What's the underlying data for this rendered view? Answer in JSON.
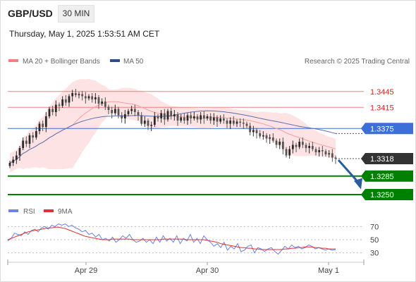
{
  "header": {
    "symbol": "GBP/USD",
    "timeframe": "30 MIN",
    "timestamp": "Thursday, May 1, 2025 1:53:51 AM CET"
  },
  "legend": {
    "bollinger": "MA 20 + Bollinger Bands",
    "ma50": "MA 50",
    "credit": "Research © 2025 Trading Central",
    "rsi": "RSI",
    "rsi_ma": "9MA"
  },
  "colors": {
    "resistance": "#f08080",
    "support": "#008000",
    "ma20": "#f4a0a0",
    "bands_fill": "#fde3e3",
    "ma50": "#5a6fb0",
    "candle_up": "#2a2a2a",
    "candle_down": "#555555",
    "current_badge": "#333333",
    "support_badge": "#008000",
    "ma50_badge": "#3d6fd8",
    "rsi": "#6b84e0",
    "rsi_ma": "#e53030",
    "forecast_arrow": "#2a5c9e"
  },
  "chart_data": [
    {
      "type": "candlestick",
      "title": "GBP/USD 30 MIN",
      "x_ticks": [
        "Apr 29",
        "Apr 30",
        "May 1"
      ],
      "ylim": [
        1.321,
        1.349
      ],
      "closes": [
        1.331,
        1.3316,
        1.3324,
        1.3338,
        1.3352,
        1.3346,
        1.3362,
        1.3358,
        1.337,
        1.3384,
        1.3378,
        1.3398,
        1.3412,
        1.3406,
        1.342,
        1.3418,
        1.343,
        1.3424,
        1.3436,
        1.3442,
        1.3438,
        1.344,
        1.3436,
        1.3432,
        1.3436,
        1.343,
        1.3434,
        1.3422,
        1.3426,
        1.3416,
        1.341,
        1.3404,
        1.3412,
        1.34,
        1.3394,
        1.3402,
        1.3408,
        1.3412,
        1.3406,
        1.34,
        1.3384,
        1.339,
        1.338,
        1.3382,
        1.3398,
        1.3394,
        1.3404,
        1.3392,
        1.3408,
        1.3398,
        1.3402,
        1.339,
        1.3396,
        1.339,
        1.34,
        1.3394,
        1.3398,
        1.3392,
        1.34,
        1.3394,
        1.3398,
        1.339,
        1.3396,
        1.3388,
        1.3394,
        1.339,
        1.3384,
        1.339,
        1.3384,
        1.3388,
        1.3386,
        1.3384,
        1.338,
        1.3368,
        1.3372,
        1.3366,
        1.336,
        1.3362,
        1.3356,
        1.3358,
        1.3352,
        1.3344,
        1.335,
        1.3336,
        1.3324,
        1.3336,
        1.3344,
        1.334,
        1.335,
        1.3344,
        1.3338,
        1.3342,
        1.3336,
        1.333,
        1.3334,
        1.3332,
        1.3326,
        1.3328,
        1.332,
        1.3318
      ],
      "levels": {
        "resistance": [
          1.3445,
          1.3415
        ],
        "ma50_badge": 1.3375,
        "current": 1.3318,
        "support": [
          1.3285,
          1.325
        ]
      },
      "forecast": {
        "from": 1.3318,
        "to": 1.326,
        "direction": "down"
      }
    },
    {
      "type": "line",
      "title": "RSI",
      "ylim": [
        20,
        80
      ],
      "y_ticks": [
        70,
        50,
        30
      ],
      "series": [
        {
          "name": "RSI",
          "values": [
            48,
            52,
            60,
            58,
            56,
            62,
            58,
            64,
            66,
            62,
            68,
            70,
            66,
            72,
            70,
            74,
            72,
            74,
            70,
            72,
            68,
            66,
            62,
            64,
            58,
            60,
            54,
            58,
            50,
            52,
            48,
            54,
            46,
            50,
            56,
            52,
            58,
            50,
            46,
            48,
            52,
            46,
            50,
            44,
            54,
            46,
            56,
            48,
            52,
            46,
            56,
            44,
            52,
            48,
            58,
            46,
            52,
            44,
            56,
            50,
            46,
            40,
            44,
            38,
            46,
            34,
            40,
            36,
            44,
            32,
            34,
            40,
            42,
            30,
            38,
            36,
            32,
            36,
            38,
            32,
            28,
            34,
            40,
            36,
            42,
            38,
            40,
            36,
            38,
            42,
            40,
            36,
            38,
            36,
            34,
            36,
            34,
            35
          ]
        },
        {
          "name": "9MA",
          "values": [
            50,
            52,
            54,
            56,
            58,
            60,
            62,
            63,
            64,
            65,
            66,
            67,
            68,
            68,
            69,
            69,
            68,
            67,
            65,
            63,
            61,
            59,
            57,
            55,
            54,
            53,
            52,
            51,
            50,
            50,
            50,
            51,
            51,
            51,
            51,
            51,
            51,
            50,
            50,
            50,
            50,
            50,
            50,
            50,
            50,
            50,
            51,
            51,
            51,
            51,
            51,
            51,
            51,
            50,
            50,
            50,
            50,
            50,
            50,
            49,
            48,
            47,
            46,
            44,
            43,
            42,
            41,
            40,
            39,
            38,
            38,
            37,
            37,
            36,
            36,
            35,
            35,
            35,
            35,
            35,
            35,
            35,
            36,
            36,
            37,
            37,
            38,
            38,
            39,
            39,
            39,
            38,
            38,
            37,
            37,
            36,
            36,
            36
          ]
        }
      ]
    }
  ]
}
